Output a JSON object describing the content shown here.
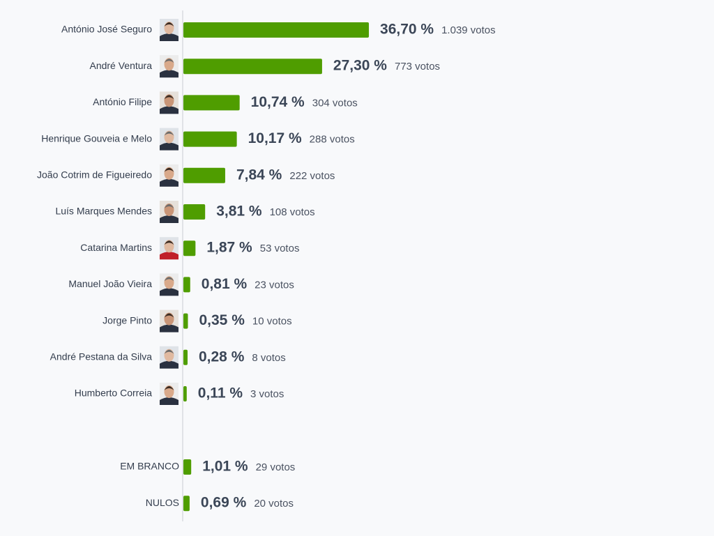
{
  "chart_data": [
    {
      "type": "bar",
      "orientation": "horizontal",
      "color": "#4f9d00",
      "categories": [
        "António José Seguro",
        "André Ventura",
        "António Filipe",
        "Henrique Gouveia e Melo",
        "João Cotrim de Figueiredo",
        "Luís Marques Mendes",
        "Catarina Martins",
        "Manuel João Vieira",
        "Jorge Pinto",
        "André Pestana da Silva",
        "Humberto Correia"
      ],
      "values": [
        36.7,
        27.3,
        10.74,
        10.17,
        7.84,
        3.81,
        1.87,
        0.81,
        0.35,
        0.28,
        0.11
      ],
      "value_labels": [
        "36,70 %",
        "27,30 %",
        "10,74 %",
        "10,17 %",
        "7,84 %",
        "3,81 %",
        "1,87 %",
        "0,81 %",
        "0,35 %",
        "0,28 %",
        "0,11 %"
      ],
      "vote_labels": [
        "1.039 votos",
        "773 votos",
        "304 votos",
        "288 votos",
        "222 votos",
        "108 votos",
        "53 votos",
        "23 votos",
        "10 votos",
        "8 votos",
        "3 votos"
      ]
    },
    {
      "type": "bar",
      "orientation": "horizontal",
      "color": "#4f9d00",
      "categories": [
        "EM BRANCO",
        "NULOS"
      ],
      "values": [
        1.01,
        0.69
      ],
      "value_labels": [
        "1,01 %",
        "0,69 %"
      ],
      "vote_labels": [
        "29 votos",
        "20 votos"
      ]
    }
  ]
}
